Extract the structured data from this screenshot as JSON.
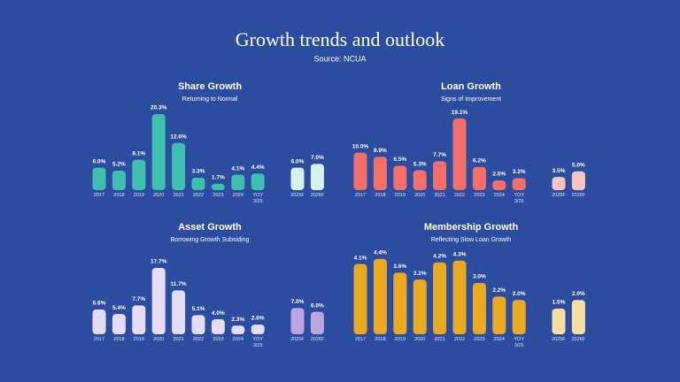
{
  "title": "Growth trends and outlook",
  "subtitle": "Source: NCUA",
  "chart_data": [
    {
      "type": "bar",
      "title": "Share Growth",
      "subtitle": "Returning to Normal",
      "categories": [
        "2017",
        "2018",
        "2019",
        "2020",
        "2021",
        "2022",
        "2023",
        "2024",
        "YOY 3/25",
        "2025F",
        "2026F"
      ],
      "values": [
        6.0,
        5.2,
        8.1,
        20.3,
        12.6,
        3.3,
        1.7,
        4.1,
        4.4,
        6.0,
        7.0
      ],
      "value_labels": [
        "6.0%",
        "5.2%",
        "8.1%",
        "20.3%",
        "12.6%",
        "3.3%",
        "1.7%",
        "4.1%",
        "4.4%",
        "6.0%",
        "7.0%"
      ],
      "colors": [
        "#3fbfb0",
        "#3fbfb0",
        "#3fbfb0",
        "#3fbfb0",
        "#3fbfb0",
        "#3fbfb0",
        "#3fbfb0",
        "#3fbfb0",
        "#3fbfb0",
        "#d5f2ee",
        "#d5f2ee"
      ],
      "ylim": [
        0,
        21
      ]
    },
    {
      "type": "bar",
      "title": "Loan Growth",
      "subtitle": "Signs of Improvement",
      "categories": [
        "2017",
        "2018",
        "2019",
        "2020",
        "2021",
        "2022",
        "2023",
        "2024",
        "YOY 3/25",
        "2025F",
        "2026F"
      ],
      "values": [
        10.0,
        8.9,
        6.5,
        5.3,
        7.7,
        19.1,
        6.2,
        2.6,
        3.2,
        3.5,
        5.0
      ],
      "value_labels": [
        "10.0%",
        "8.9%",
        "6.5%",
        "5.3%",
        "7.7%",
        "19.1%",
        "6.2%",
        "2.6%",
        "3.2%",
        "3.5%",
        "5.0%"
      ],
      "colors": [
        "#f26f6a",
        "#f26f6a",
        "#f26f6a",
        "#f26f6a",
        "#f26f6a",
        "#f26f6a",
        "#f26f6a",
        "#f26f6a",
        "#f26f6a",
        "#f7c5c1",
        "#f7c5c1"
      ],
      "ylim": [
        0,
        21
      ]
    },
    {
      "type": "bar",
      "title": "Asset Growth",
      "subtitle": "Borrowing Growth Subsiding",
      "categories": [
        "2017",
        "2018",
        "2019",
        "2020",
        "2021",
        "2022",
        "2023",
        "2024",
        "YOY 3/25",
        "2025F",
        "2026F"
      ],
      "values": [
        6.6,
        5.4,
        7.7,
        17.7,
        11.7,
        5.1,
        4.0,
        2.3,
        2.6,
        7.0,
        6.0
      ],
      "value_labels": [
        "6.6%",
        "5.4%",
        "7.7%",
        "17.7%",
        "11.7%",
        "5.1%",
        "4.0%",
        "2.3%",
        "2.6%",
        "7.0%",
        "6.0%"
      ],
      "colors": [
        "#e4dcf4",
        "#e4dcf4",
        "#e4dcf4",
        "#e4dcf4",
        "#e4dcf4",
        "#e4dcf4",
        "#e4dcf4",
        "#e4dcf4",
        "#e4dcf4",
        "#b9a5e0",
        "#b9a5e0"
      ],
      "ylim": [
        0,
        21
      ]
    },
    {
      "type": "bar",
      "title": "Membership Growth",
      "subtitle": "Reflecting Slow Loan Growth",
      "categories": [
        "2017",
        "2018",
        "2019",
        "2020",
        "2021",
        "2022",
        "2023",
        "2024",
        "YOY 3/25",
        "2025F",
        "2026F"
      ],
      "values": [
        4.1,
        4.4,
        3.6,
        3.2,
        4.2,
        4.3,
        3.0,
        2.2,
        2.0,
        1.5,
        2.0
      ],
      "value_labels": [
        "4.1%",
        "4.4%",
        "3.6%",
        "3.2%",
        "4.2%",
        "4.3%",
        "3.0%",
        "2.2%",
        "2.0%",
        "1.5%",
        "2.0%"
      ],
      "colors": [
        "#e9a923",
        "#e9a923",
        "#e9a923",
        "#e9a923",
        "#e9a923",
        "#e9a923",
        "#e9a923",
        "#e9a923",
        "#e9a923",
        "#f7dfa4",
        "#f7dfa4"
      ],
      "ylim": [
        0,
        4.6
      ]
    }
  ]
}
